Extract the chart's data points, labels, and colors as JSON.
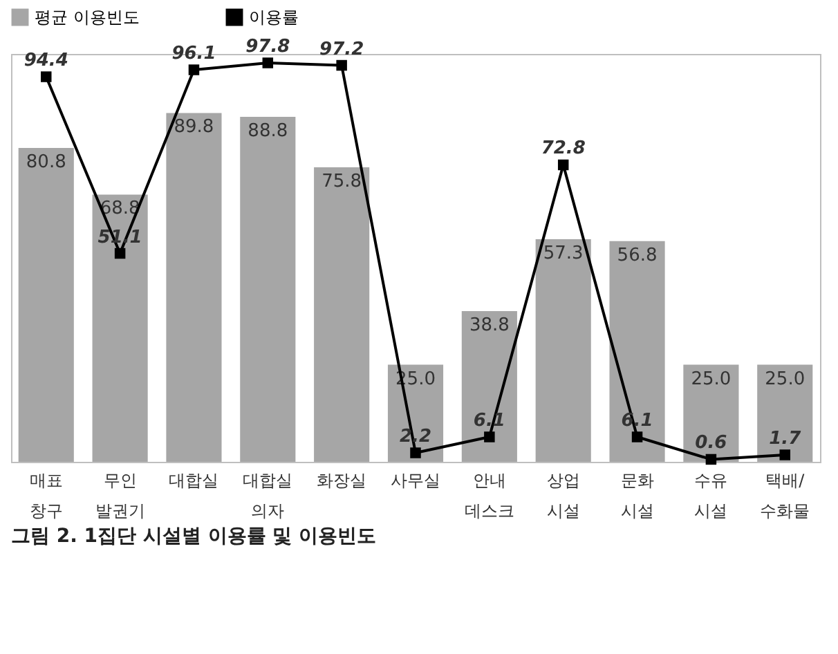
{
  "chart_data": {
    "type": "bar",
    "title": "그림 2. 1집단 시설별 이용률 및 이용빈도",
    "categories": [
      "매표\n창구",
      "무인\n발권기",
      "대합실",
      "대합실\n의자",
      "화장실",
      "사무실",
      "안내\n데스크",
      "상업\n시설",
      "문화\n시설",
      "수유\n시설",
      "택배/\n수화물"
    ],
    "series": [
      {
        "name": "평균 이용빈도",
        "color": "#a6a6a6",
        "values": [
          80.8,
          68.8,
          89.8,
          88.8,
          75.8,
          25.0,
          38.8,
          57.3,
          56.8,
          25.0,
          25.0
        ],
        "value_labels": [
          "80.8",
          "68.8",
          "89.8",
          "88.8",
          "75.8",
          "25.0",
          "38.8",
          "57.3",
          "56.8",
          "25.0",
          "25.0"
        ]
      },
      {
        "name": "이용률",
        "type": "line",
        "axis": "y2",
        "color": "#000000",
        "values": [
          94.4,
          51.1,
          96.1,
          97.8,
          97.2,
          2.2,
          6.1,
          72.8,
          6.1,
          0.6,
          1.7
        ]
      }
    ],
    "ylim": [
      0,
      105
    ],
    "y2lim": [
      0,
      100
    ],
    "tick_labels": "x",
    "data_labels": true,
    "legend": "top",
    "marker": "square"
  }
}
